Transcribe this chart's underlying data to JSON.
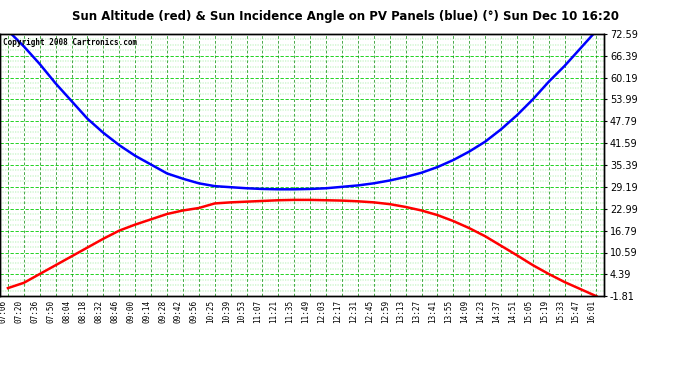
{
  "title": "Sun Altitude (red) & Sun Incidence Angle on PV Panels (blue) (°) Sun Dec 10 16:20",
  "copyright": "Copyright 2008 Cartronics.com",
  "x_labels": [
    "07:06",
    "07:20",
    "07:36",
    "07:50",
    "08:04",
    "08:18",
    "08:32",
    "08:46",
    "09:00",
    "09:14",
    "09:28",
    "09:42",
    "09:56",
    "10:25",
    "10:39",
    "10:53",
    "11:07",
    "11:21",
    "11:35",
    "11:49",
    "12:03",
    "12:17",
    "12:31",
    "12:45",
    "12:59",
    "13:13",
    "13:27",
    "13:41",
    "13:55",
    "14:09",
    "14:23",
    "14:37",
    "14:51",
    "15:05",
    "15:19",
    "15:33",
    "15:47",
    "16:01"
  ],
  "y_ticks": [
    -1.81,
    4.39,
    10.59,
    16.79,
    22.99,
    29.19,
    35.39,
    41.59,
    47.79,
    53.99,
    60.19,
    66.39,
    72.59
  ],
  "ylim": [
    -1.81,
    72.59
  ],
  "plot_bg": "#ffffff",
  "grid_color_major_h": "#00cc00",
  "grid_color_major_v": "#009900",
  "red_data": [
    0.5,
    2.0,
    4.5,
    7.0,
    9.5,
    12.0,
    14.5,
    16.8,
    18.5,
    20.0,
    21.5,
    22.5,
    23.2,
    24.5,
    24.8,
    25.0,
    25.2,
    25.4,
    25.5,
    25.5,
    25.4,
    25.3,
    25.1,
    24.8,
    24.3,
    23.5,
    22.5,
    21.2,
    19.5,
    17.5,
    15.2,
    12.5,
    9.8,
    7.0,
    4.5,
    2.2,
    0.2,
    -1.81
  ],
  "blue_data": [
    73.5,
    69.0,
    64.0,
    58.5,
    53.5,
    48.5,
    44.5,
    41.0,
    38.0,
    35.5,
    33.0,
    31.5,
    30.2,
    29.4,
    29.1,
    28.8,
    28.6,
    28.5,
    28.5,
    28.6,
    28.8,
    29.2,
    29.6,
    30.2,
    31.0,
    32.0,
    33.2,
    34.8,
    36.8,
    39.2,
    42.0,
    45.5,
    49.5,
    54.0,
    59.0,
    63.5,
    68.5,
    73.5
  ]
}
